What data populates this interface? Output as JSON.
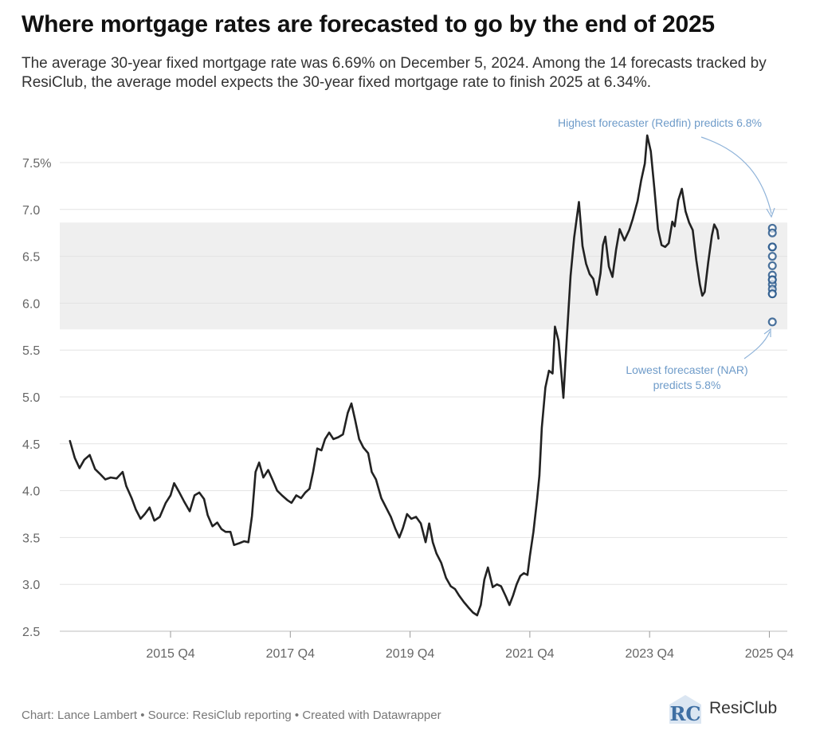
{
  "title": "Where mortgage rates are forecasted to go by the end of 2025",
  "subtitle": "The average 30-year fixed mortgage rate was 6.69% on December 5, 2024. Among the 14 forecasts tracked by ResiClub, the average model expects the 30-year fixed mortgage rate to finish 2025 at 6.34%.",
  "footer": "Chart: Lance Lambert • Source: ResiClub reporting • Created with Datawrapper",
  "brand": {
    "name": "ResiClub",
    "logo_text": "RC"
  },
  "colors": {
    "line": "#222222",
    "band": "#efefef",
    "forecast": "#2c5b8d",
    "annotation": "#6e9bc9",
    "grid": "#e3e3e3"
  },
  "chart_data": {
    "type": "line",
    "title": "Where mortgage rates are forecasted to go by the end of 2025",
    "xlabel": "",
    "ylabel": "",
    "ylim": [
      2.5,
      7.75
    ],
    "xlim": [
      2014.05,
      2026.2
    ],
    "x_ticks": [
      {
        "x": 2015.9,
        "label": "2015 Q4"
      },
      {
        "x": 2017.9,
        "label": "2017 Q4"
      },
      {
        "x": 2019.9,
        "label": "2019 Q4"
      },
      {
        "x": 2021.9,
        "label": "2021 Q4"
      },
      {
        "x": 2023.9,
        "label": "2023 Q4"
      },
      {
        "x": 2025.9,
        "label": "2025 Q4"
      }
    ],
    "y_ticks": [
      {
        "y": 2.5,
        "label": "2.5"
      },
      {
        "y": 3.0,
        "label": "3.0"
      },
      {
        "y": 3.5,
        "label": "3.5"
      },
      {
        "y": 4.0,
        "label": "4.0"
      },
      {
        "y": 4.5,
        "label": "4.5"
      },
      {
        "y": 5.0,
        "label": "5.0"
      },
      {
        "y": 5.5,
        "label": "5.5"
      },
      {
        "y": 6.0,
        "label": "6.0"
      },
      {
        "y": 6.5,
        "label": "6.5"
      },
      {
        "y": 7.0,
        "label": "7.0"
      },
      {
        "y": 7.5,
        "label": "7.5%"
      }
    ],
    "band": {
      "y_min": 5.72,
      "y_max": 6.86
    },
    "series": [
      {
        "values": [
          [
            2014.22,
            4.53
          ],
          [
            2014.3,
            4.35
          ],
          [
            2014.38,
            4.24
          ],
          [
            2014.46,
            4.33
          ],
          [
            2014.55,
            4.38
          ],
          [
            2014.64,
            4.23
          ],
          [
            2014.72,
            4.18
          ],
          [
            2014.81,
            4.12
          ],
          [
            2014.9,
            4.14
          ],
          [
            2015.0,
            4.13
          ],
          [
            2015.1,
            4.2
          ],
          [
            2015.16,
            4.05
          ],
          [
            2015.25,
            3.92
          ],
          [
            2015.32,
            3.8
          ],
          [
            2015.4,
            3.7
          ],
          [
            2015.47,
            3.75
          ],
          [
            2015.55,
            3.82
          ],
          [
            2015.63,
            3.68
          ],
          [
            2015.72,
            3.72
          ],
          [
            2015.82,
            3.87
          ],
          [
            2015.9,
            3.95
          ],
          [
            2015.96,
            4.08
          ],
          [
            2016.04,
            3.99
          ],
          [
            2016.13,
            3.88
          ],
          [
            2016.22,
            3.78
          ],
          [
            2016.3,
            3.95
          ],
          [
            2016.38,
            3.98
          ],
          [
            2016.46,
            3.91
          ],
          [
            2016.52,
            3.74
          ],
          [
            2016.6,
            3.62
          ],
          [
            2016.68,
            3.66
          ],
          [
            2016.75,
            3.59
          ],
          [
            2016.82,
            3.56
          ],
          [
            2016.9,
            3.56
          ],
          [
            2016.96,
            3.42
          ],
          [
            2017.05,
            3.44
          ],
          [
            2017.13,
            3.46
          ],
          [
            2017.2,
            3.45
          ],
          [
            2017.26,
            3.73
          ],
          [
            2017.32,
            4.2
          ],
          [
            2017.38,
            4.3
          ],
          [
            2017.45,
            4.14
          ],
          [
            2017.53,
            4.22
          ],
          [
            2017.6,
            4.12
          ],
          [
            2017.68,
            4.0
          ],
          [
            2017.76,
            3.95
          ],
          [
            2017.85,
            3.9
          ],
          [
            2017.92,
            3.87
          ],
          [
            2018.0,
            3.95
          ],
          [
            2018.08,
            3.92
          ],
          [
            2018.15,
            3.98
          ],
          [
            2018.22,
            4.02
          ],
          [
            2018.28,
            4.2
          ],
          [
            2018.35,
            4.45
          ],
          [
            2018.42,
            4.43
          ],
          [
            2018.48,
            4.55
          ],
          [
            2018.55,
            4.62
          ],
          [
            2018.62,
            4.55
          ],
          [
            2018.7,
            4.57
          ],
          [
            2018.78,
            4.6
          ],
          [
            2018.86,
            4.83
          ],
          [
            2018.92,
            4.93
          ],
          [
            2018.98,
            4.76
          ],
          [
            2019.05,
            4.55
          ],
          [
            2019.12,
            4.46
          ],
          [
            2019.2,
            4.4
          ],
          [
            2019.26,
            4.2
          ],
          [
            2019.33,
            4.12
          ],
          [
            2019.42,
            3.92
          ],
          [
            2019.5,
            3.82
          ],
          [
            2019.58,
            3.72
          ],
          [
            2019.65,
            3.6
          ],
          [
            2019.72,
            3.5
          ],
          [
            2019.78,
            3.6
          ],
          [
            2019.85,
            3.75
          ],
          [
            2019.92,
            3.7
          ],
          [
            2020.0,
            3.72
          ],
          [
            2020.08,
            3.65
          ],
          [
            2020.16,
            3.45
          ],
          [
            2020.22,
            3.65
          ],
          [
            2020.28,
            3.45
          ],
          [
            2020.34,
            3.33
          ],
          [
            2020.42,
            3.23
          ],
          [
            2020.5,
            3.07
          ],
          [
            2020.58,
            2.98
          ],
          [
            2020.65,
            2.95
          ],
          [
            2020.72,
            2.88
          ],
          [
            2020.8,
            2.81
          ],
          [
            2020.88,
            2.75
          ],
          [
            2020.95,
            2.7
          ],
          [
            2021.02,
            2.67
          ],
          [
            2021.08,
            2.78
          ],
          [
            2021.14,
            3.05
          ],
          [
            2021.2,
            3.18
          ],
          [
            2021.28,
            2.97
          ],
          [
            2021.35,
            3.0
          ],
          [
            2021.42,
            2.98
          ],
          [
            2021.5,
            2.87
          ],
          [
            2021.56,
            2.78
          ],
          [
            2021.62,
            2.88
          ],
          [
            2021.68,
            3.0
          ],
          [
            2021.74,
            3.09
          ],
          [
            2021.8,
            3.12
          ],
          [
            2021.86,
            3.1
          ],
          [
            2021.9,
            3.3
          ],
          [
            2021.96,
            3.56
          ],
          [
            2022.02,
            3.9
          ],
          [
            2022.06,
            4.16
          ],
          [
            2022.1,
            4.67
          ],
          [
            2022.16,
            5.1
          ],
          [
            2022.22,
            5.28
          ],
          [
            2022.28,
            5.25
          ],
          [
            2022.32,
            5.75
          ],
          [
            2022.38,
            5.6
          ],
          [
            2022.42,
            5.3
          ],
          [
            2022.46,
            4.99
          ],
          [
            2022.52,
            5.66
          ],
          [
            2022.58,
            6.29
          ],
          [
            2022.64,
            6.7
          ],
          [
            2022.72,
            7.08
          ],
          [
            2022.78,
            6.61
          ],
          [
            2022.84,
            6.42
          ],
          [
            2022.9,
            6.31
          ],
          [
            2022.96,
            6.26
          ],
          [
            2023.02,
            6.09
          ],
          [
            2023.08,
            6.32
          ],
          [
            2023.12,
            6.62
          ],
          [
            2023.16,
            6.71
          ],
          [
            2023.22,
            6.39
          ],
          [
            2023.28,
            6.28
          ],
          [
            2023.34,
            6.57
          ],
          [
            2023.4,
            6.79
          ],
          [
            2023.48,
            6.67
          ],
          [
            2023.56,
            6.78
          ],
          [
            2023.62,
            6.9
          ],
          [
            2023.7,
            7.09
          ],
          [
            2023.76,
            7.31
          ],
          [
            2023.82,
            7.49
          ],
          [
            2023.86,
            7.79
          ],
          [
            2023.92,
            7.62
          ],
          [
            2023.98,
            7.22
          ],
          [
            2024.04,
            6.79
          ],
          [
            2024.1,
            6.62
          ],
          [
            2024.16,
            6.6
          ],
          [
            2024.22,
            6.64
          ],
          [
            2024.28,
            6.87
          ],
          [
            2024.32,
            6.82
          ],
          [
            2024.38,
            7.1
          ],
          [
            2024.44,
            7.22
          ],
          [
            2024.5,
            6.98
          ],
          [
            2024.56,
            6.86
          ],
          [
            2024.62,
            6.78
          ],
          [
            2024.68,
            6.46
          ],
          [
            2024.74,
            6.2
          ],
          [
            2024.78,
            6.08
          ],
          [
            2024.82,
            6.12
          ],
          [
            2024.88,
            6.44
          ],
          [
            2024.94,
            6.72
          ],
          [
            2024.98,
            6.84
          ],
          [
            2025.03,
            6.78
          ],
          [
            2025.05,
            6.69
          ]
        ]
      }
    ],
    "forecast_x": 2025.95,
    "forecasts": [
      6.8,
      6.75,
      6.6,
      6.5,
      6.4,
      6.3,
      6.25,
      6.2,
      6.15,
      6.1,
      6.6,
      6.25,
      6.1,
      5.8
    ],
    "annotations": [
      {
        "text": "Highest forecaster (Redfin) predicts 6.8%"
      },
      {
        "lines": [
          "Lowest forecaster (NAR)",
          "predicts 5.8%"
        ]
      }
    ]
  }
}
